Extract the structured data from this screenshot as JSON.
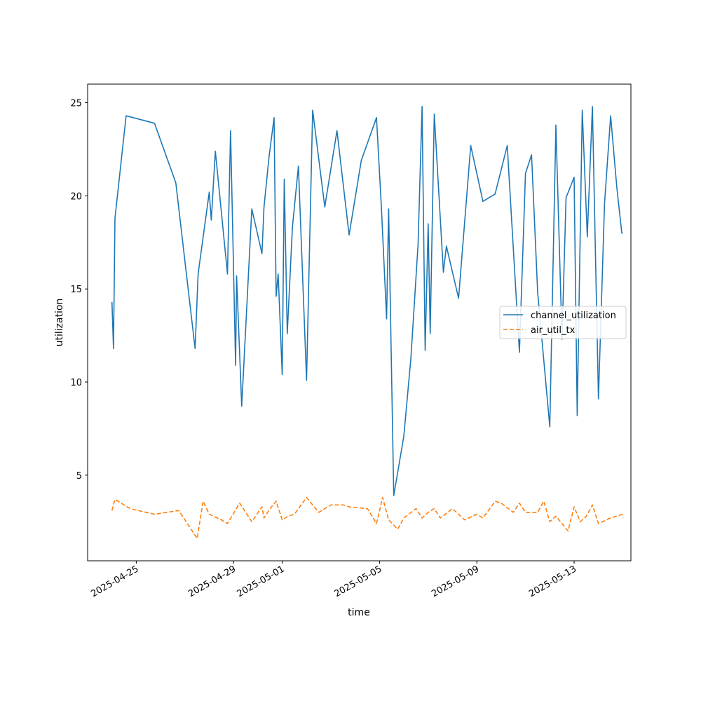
{
  "chart_data": {
    "type": "line",
    "xlabel": "time",
    "ylabel": "utilization",
    "xlim": [
      "2025-04-23T00:00",
      "2025-05-15T08:00"
    ],
    "ylim": [
      0.4,
      26
    ],
    "y_ticks": [
      5,
      10,
      15,
      20,
      25
    ],
    "x_ticks": [
      "2025-04-25",
      "2025-04-29",
      "2025-05-01",
      "2025-05-05",
      "2025-05-09",
      "2025-05-13"
    ],
    "grid": false,
    "legend_position": "center-right",
    "series": [
      {
        "name": "channel_utilization",
        "color": "#1f77b4",
        "dash": "solid",
        "x": [
          "2025-04-24T00:00",
          "2025-04-24T01:30",
          "2025-04-24T03:00",
          "2025-04-24T14:00",
          "2025-04-25T18:00",
          "2025-04-26T15:00",
          "2025-04-27T10:00",
          "2025-04-27T13:00",
          "2025-04-28T00:00",
          "2025-04-28T02:00",
          "2025-04-28T06:00",
          "2025-04-28T18:00",
          "2025-04-28T21:00",
          "2025-04-29T02:00",
          "2025-04-29T03:00",
          "2025-04-29T08:00",
          "2025-04-29T18:00",
          "2025-04-30T04:00",
          "2025-04-30T06:00",
          "2025-04-30T11:00",
          "2025-04-30T16:00",
          "2025-04-30T18:00",
          "2025-04-30T20:00",
          "2025-05-01T00:00",
          "2025-05-01T02:00",
          "2025-05-01T05:00",
          "2025-05-01T10:00",
          "2025-05-01T16:00",
          "2025-05-02T00:00",
          "2025-05-02T06:00",
          "2025-05-02T18:00",
          "2025-05-03T06:00",
          "2025-05-03T18:00",
          "2025-05-04T06:00",
          "2025-05-04T21:00",
          "2025-05-05T02:00",
          "2025-05-05T07:00",
          "2025-05-05T09:00",
          "2025-05-05T14:00",
          "2025-05-06T00:00",
          "2025-05-06T07:00",
          "2025-05-06T14:00",
          "2025-05-06T18:00",
          "2025-05-06T21:00",
          "2025-05-07T00:00",
          "2025-05-07T02:00",
          "2025-05-07T06:00",
          "2025-05-07T15:00",
          "2025-05-07T18:00",
          "2025-05-08T06:00",
          "2025-05-08T18:00",
          "2025-05-09T06:00",
          "2025-05-09T18:00",
          "2025-05-10T06:00",
          "2025-05-10T18:00",
          "2025-05-11T00:00",
          "2025-05-11T06:00",
          "2025-05-11T12:00",
          "2025-05-12T00:00",
          "2025-05-12T06:00",
          "2025-05-12T12:00",
          "2025-05-12T16:00",
          "2025-05-13T00:00",
          "2025-05-13T03:00",
          "2025-05-13T08:00",
          "2025-05-13T13:00",
          "2025-05-13T18:00",
          "2025-05-14T00:00",
          "2025-05-14T06:00",
          "2025-05-14T12:00",
          "2025-05-14T18:00",
          "2025-05-14T23:00",
          "2025-05-15T00:00"
        ],
        "values": [
          14.3,
          11.8,
          18.8,
          24.3,
          23.9,
          20.7,
          11.8,
          15.8,
          20.2,
          18.7,
          22.4,
          15.8,
          23.5,
          10.9,
          15.7,
          8.7,
          19.3,
          16.9,
          19.4,
          22.1,
          24.2,
          14.6,
          15.8,
          10.4,
          20.9,
          12.6,
          18.3,
          21.6,
          10.1,
          24.6,
          19.4,
          23.5,
          17.9,
          21.9,
          24.2,
          19.2,
          13.4,
          19.3,
          3.9,
          7.1,
          11.3,
          17.4,
          24.8,
          11.7,
          18.5,
          12.6,
          24.4,
          15.9,
          17.3,
          14.5,
          22.7,
          19.7,
          20.1,
          22.7,
          11.6,
          21.2,
          22.2,
          14.8,
          7.6,
          23.8,
          12.3,
          19.9,
          21.0,
          8.2,
          24.6,
          17.8,
          24.8,
          9.1,
          19.6,
          24.3,
          20.5,
          18.0,
          18.0
        ]
      },
      {
        "name": "air_util_tx",
        "color": "#ff7f0e",
        "dash": "dashed",
        "x": [
          "2025-04-24T00:00",
          "2025-04-24T03:00",
          "2025-04-24T18:00",
          "2025-04-25T18:00",
          "2025-04-26T18:00",
          "2025-04-27T00:00",
          "2025-04-27T12:00",
          "2025-04-27T18:00",
          "2025-04-28T00:00",
          "2025-04-28T12:00",
          "2025-04-28T18:00",
          "2025-04-29T06:00",
          "2025-04-29T18:00",
          "2025-04-30T04:00",
          "2025-04-30T06:00",
          "2025-04-30T12:00",
          "2025-04-30T18:00",
          "2025-05-01T00:00",
          "2025-05-01T06:00",
          "2025-05-01T12:00",
          "2025-05-02T00:00",
          "2025-05-02T12:00",
          "2025-05-03T00:00",
          "2025-05-03T12:00",
          "2025-05-03T18:00",
          "2025-05-04T12:00",
          "2025-05-04T21:00",
          "2025-05-05T03:00",
          "2025-05-05T09:00",
          "2025-05-05T18:00",
          "2025-05-06T00:00",
          "2025-05-06T12:00",
          "2025-05-06T18:00",
          "2025-05-07T00:00",
          "2025-05-07T06:00",
          "2025-05-07T12:00",
          "2025-05-08T00:00",
          "2025-05-08T12:00",
          "2025-05-09T00:00",
          "2025-05-09T06:00",
          "2025-05-09T18:00",
          "2025-05-10T00:00",
          "2025-05-10T12:00",
          "2025-05-10T18:00",
          "2025-05-11T00:00",
          "2025-05-11T12:00",
          "2025-05-11T18:00",
          "2025-05-12T00:00",
          "2025-05-12T06:00",
          "2025-05-12T18:00",
          "2025-05-13T00:00",
          "2025-05-13T06:00",
          "2025-05-13T12:00",
          "2025-05-13T18:00",
          "2025-05-14T00:00",
          "2025-05-14T12:00",
          "2025-05-15T00:00"
        ],
        "values": [
          3.1,
          3.7,
          3.2,
          2.9,
          3.1,
          2.6,
          1.6,
          3.6,
          2.9,
          2.6,
          2.4,
          3.5,
          2.5,
          3.3,
          2.7,
          3.2,
          3.6,
          2.6,
          2.8,
          2.9,
          3.8,
          3.0,
          3.4,
          3.4,
          3.3,
          3.2,
          2.4,
          3.8,
          2.6,
          2.1,
          2.7,
          3.2,
          2.7,
          3.0,
          3.2,
          2.7,
          3.2,
          2.6,
          2.9,
          2.7,
          3.6,
          3.5,
          3.0,
          3.5,
          3.0,
          3.0,
          3.6,
          2.5,
          2.8,
          2.0,
          3.3,
          2.5,
          2.8,
          3.4,
          2.4,
          2.7,
          2.9
        ]
      }
    ]
  }
}
